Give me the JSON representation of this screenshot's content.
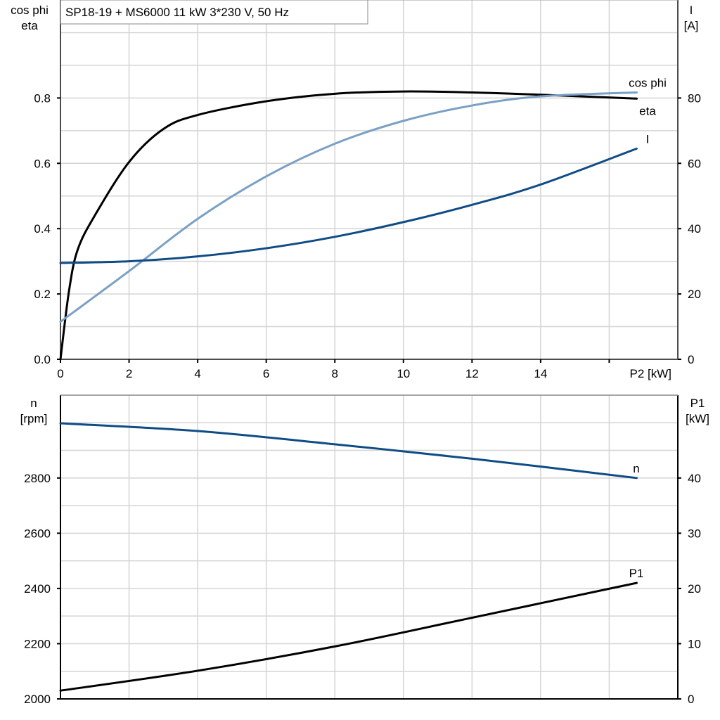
{
  "chart_data": [
    {
      "type": "line",
      "title": "SP18-19 + MS6000   11 kW   3*230 V, 50 Hz",
      "xlabel": "P2 [kW]",
      "ylabel_left": [
        "cos phi",
        "eta"
      ],
      "ylabel_right": [
        "I",
        "[A]"
      ],
      "xlim": [
        0,
        18
      ],
      "ylim_left": [
        0,
        1.1
      ],
      "ylim_right": [
        0,
        110
      ],
      "xticks": [
        0,
        2,
        4,
        6,
        8,
        10,
        12,
        14
      ],
      "yticks_left": [
        "0.0",
        "0.2",
        "0.4",
        "0.6",
        "0.8"
      ],
      "yticks_right": [
        "0",
        "20",
        "40",
        "60",
        "80"
      ],
      "grid": true,
      "series": [
        {
          "name": "eta",
          "axis": "left",
          "color": "#000000",
          "x": [
            0,
            0.25,
            0.5,
            1,
            2,
            3,
            4,
            6,
            8,
            10,
            12,
            14,
            16.8
          ],
          "y": [
            0,
            0.21,
            0.335,
            0.44,
            0.604,
            0.705,
            0.748,
            0.79,
            0.813,
            0.82,
            0.817,
            0.81,
            0.798
          ]
        },
        {
          "name": "cos phi",
          "axis": "left",
          "color": "#7aa0c4",
          "x": [
            0,
            2,
            4,
            6,
            8,
            10,
            12,
            14,
            16.8
          ],
          "y": [
            0.115,
            0.27,
            0.43,
            0.56,
            0.66,
            0.73,
            0.777,
            0.805,
            0.817
          ]
        },
        {
          "name": "I",
          "axis": "right",
          "color": "#0f4c85",
          "x": [
            0,
            2,
            4,
            6,
            8,
            10,
            12,
            14,
            16.8
          ],
          "y": [
            29.5,
            30,
            31.5,
            34,
            37.5,
            42,
            47.3,
            53.5,
            64.5
          ]
        }
      ]
    },
    {
      "type": "line",
      "xlim": [
        0,
        18
      ],
      "ylabel_left": [
        "n",
        "[rpm]"
      ],
      "ylabel_right": [
        "P1",
        "[kW]"
      ],
      "ylim_left": [
        2000,
        3100
      ],
      "ylim_right": [
        0,
        55
      ],
      "yticks_left": [
        "2000",
        "2200",
        "2400",
        "2600",
        "2800"
      ],
      "yticks_right": [
        "0",
        "10",
        "20",
        "30",
        "40"
      ],
      "grid": true,
      "series": [
        {
          "name": "n",
          "axis": "left",
          "color": "#0f4c85",
          "x": [
            0,
            4,
            8,
            12,
            16.8
          ],
          "y": [
            2998,
            2970,
            2922,
            2870,
            2800
          ]
        },
        {
          "name": "P1",
          "axis": "right",
          "color": "#000000",
          "x": [
            0,
            4,
            8,
            12,
            16.8
          ],
          "y": [
            1.5,
            5.1,
            9.5,
            14.7,
            21
          ]
        }
      ]
    }
  ]
}
